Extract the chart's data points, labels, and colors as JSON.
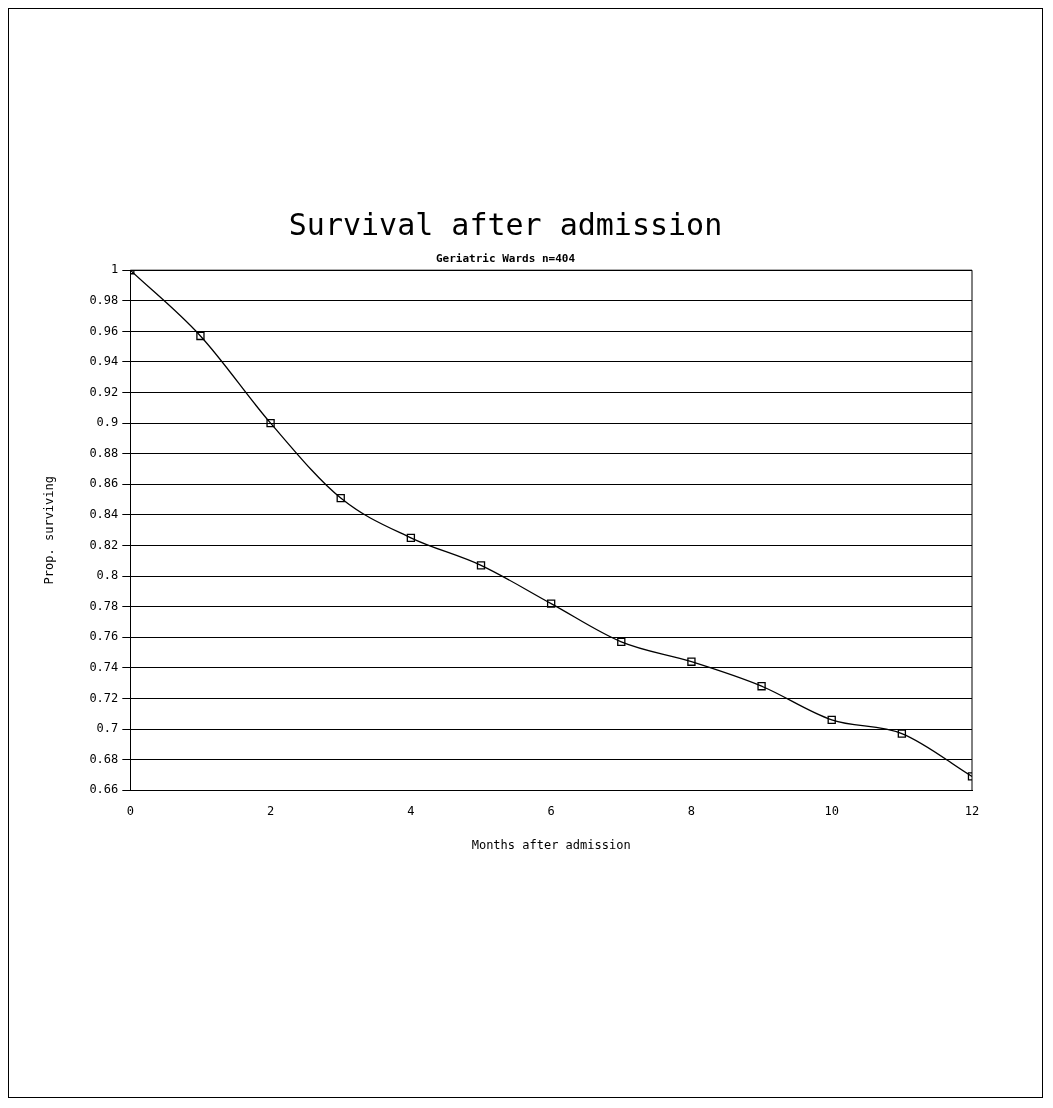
{
  "chart_data": {
    "type": "line",
    "title": "Survival after admission",
    "subtitle": "Geriatric Wards n=404",
    "xlabel": "Months after admission",
    "ylabel": "Prop. surviving",
    "x": [
      0,
      1,
      2,
      3,
      4,
      5,
      6,
      7,
      8,
      9,
      10,
      11,
      12
    ],
    "series": [
      {
        "color": "#000000",
        "values": [
          1,
          0.957,
          0.9,
          0.851,
          0.825,
          0.807,
          0.782,
          0.757,
          0.744,
          0.728,
          0.706,
          0.697,
          0.669
        ]
      }
    ],
    "xlim": [
      0,
      12
    ],
    "xticks": [
      0,
      2,
      4,
      6,
      8,
      10,
      12
    ],
    "ylim": [
      0.66,
      1
    ],
    "yticks": [
      0.66,
      0.68,
      0.7,
      0.72,
      0.74,
      0.76,
      0.78,
      0.8,
      0.82,
      0.84,
      0.86,
      0.88,
      0.9,
      0.92,
      0.94,
      0.96,
      0.98,
      1
    ],
    "grid": "y",
    "legend": false,
    "marker": "square",
    "line_style": "solid"
  }
}
